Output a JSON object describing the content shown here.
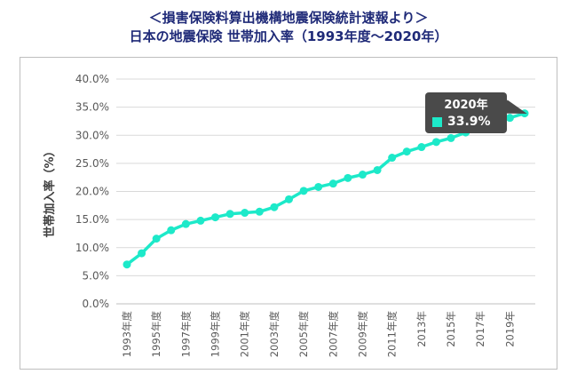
{
  "header": {
    "title_line1": "＜損害保険料算出機構地震保険統計速報より＞",
    "title_line2": "日本の地震保険 世帯加入率（1993年度〜2020年）"
  },
  "chart_data": {
    "type": "line",
    "ylabel": "世帯加入率（%）",
    "xlabel": "",
    "ylim": [
      0,
      40
    ],
    "yticks": [
      "0.0%",
      "5.0%",
      "10.0%",
      "15.0%",
      "20.0%",
      "25.0%",
      "30.0%",
      "35.0%",
      "40.0%"
    ],
    "x_tick_labels": [
      "1993年度",
      "1995年度",
      "1997年度",
      "1999年度",
      "2001年度",
      "2003年度",
      "2005年度",
      "2007年度",
      "2009年度",
      "2011年度",
      "2013年",
      "2015年",
      "2017年",
      "2019年"
    ],
    "x": [
      1993,
      1994,
      1995,
      1996,
      1997,
      1998,
      1999,
      2000,
      2001,
      2002,
      2003,
      2004,
      2005,
      2006,
      2007,
      2008,
      2009,
      2010,
      2011,
      2012,
      2013,
      2014,
      2015,
      2016,
      2017,
      2018,
      2019,
      2020
    ],
    "series": [
      {
        "values": [
          7.0,
          9.0,
          11.6,
          13.1,
          14.2,
          14.8,
          15.4,
          16.0,
          16.2,
          16.4,
          17.2,
          18.6,
          20.1,
          20.8,
          21.4,
          22.4,
          23.0,
          23.8,
          26.0,
          27.1,
          27.9,
          28.8,
          29.5,
          30.5,
          31.2,
          32.2,
          33.1,
          33.9
        ],
        "color": "#1de9c9"
      }
    ],
    "grid": true,
    "tooltip": {
      "year": "2020年",
      "value": "33.9%"
    }
  }
}
